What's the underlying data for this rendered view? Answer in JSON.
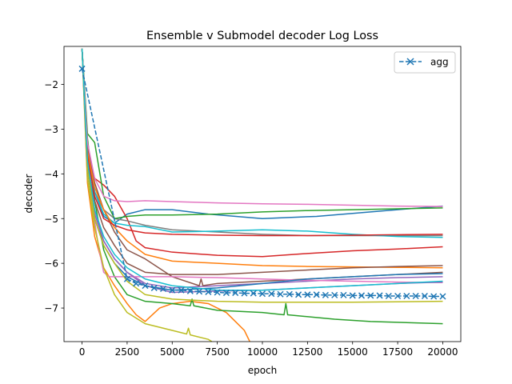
{
  "chart_data": {
    "type": "line",
    "title": "Ensemble v Submodel decoder Log Loss",
    "xlabel": "epoch",
    "ylabel": "decoder",
    "xlim": [
      -1000,
      21000
    ],
    "ylim": [
      -7.75,
      -1.15
    ],
    "xticks": [
      0,
      2500,
      5000,
      7500,
      10000,
      12500,
      15000,
      17500,
      20000
    ],
    "yticks": [
      -7,
      -6,
      -5,
      -4,
      -3,
      -2
    ],
    "ytick_labels": [
      "−7",
      "−6",
      "−5",
      "−4",
      "−3",
      "−2"
    ],
    "grid": false,
    "legend": {
      "position": "top-right",
      "entries": [
        "agg"
      ]
    },
    "agg": {
      "name": "agg",
      "color": "#1f77b4",
      "style": "dashed",
      "marker": "x",
      "x": [
        0,
        2500,
        3000,
        3500,
        4000,
        4500,
        5000,
        5500,
        6000,
        6500,
        7000,
        7500,
        8000,
        8500,
        9000,
        9500,
        10000,
        10500,
        11000,
        11500,
        12000,
        12500,
        13000,
        13500,
        14000,
        14500,
        15000,
        15500,
        16000,
        16500,
        17000,
        17500,
        18000,
        18500,
        19000,
        19500,
        20000
      ],
      "y": [
        -1.65,
        -6.35,
        -6.45,
        -6.5,
        -6.55,
        -6.57,
        -6.6,
        -6.6,
        -6.62,
        -6.63,
        -6.64,
        -6.65,
        -6.66,
        -6.66,
        -6.67,
        -6.67,
        -6.68,
        -6.68,
        -6.69,
        -6.69,
        -6.7,
        -6.7,
        -6.7,
        -6.71,
        -6.71,
        -6.71,
        -6.72,
        -6.72,
        -6.72,
        -6.72,
        -6.73,
        -6.73,
        -6.73,
        -6.73,
        -6.73,
        -6.74,
        -6.74
      ]
    },
    "series": [
      {
        "color": "#1f77b4",
        "x": [
          0,
          300,
          700,
          1200,
          1800,
          2500,
          3500,
          5000,
          7000,
          10000,
          13000,
          16000,
          20000
        ],
        "y": [
          -1.2,
          -3.3,
          -4.4,
          -4.95,
          -5.1,
          -4.9,
          -4.8,
          -4.8,
          -4.9,
          -5.0,
          -4.95,
          -4.85,
          -4.72
        ]
      },
      {
        "color": "#ff7f0e",
        "x": [
          0,
          300,
          700,
          1200,
          1800,
          2500,
          3000,
          3500,
          3900,
          4300,
          5000,
          6000,
          7000,
          8000,
          8500,
          9000,
          9300
        ],
        "y": [
          -1.2,
          -4.2,
          -5.4,
          -6.1,
          -6.5,
          -6.9,
          -7.15,
          -7.3,
          -7.15,
          -7.0,
          -6.9,
          -6.85,
          -6.9,
          -7.1,
          -7.3,
          -7.5,
          -7.75
        ]
      },
      {
        "color": "#2ca02c",
        "x": [
          0,
          300,
          700,
          1200,
          1800,
          2500,
          3500,
          5000,
          6000,
          6100,
          6200,
          7500,
          10000,
          11200,
          11300,
          11400,
          14000,
          16000,
          20000
        ],
        "y": [
          -1.2,
          -3.2,
          -4.6,
          -5.7,
          -6.3,
          -6.7,
          -6.85,
          -6.9,
          -6.95,
          -6.8,
          -6.95,
          -7.05,
          -7.1,
          -7.15,
          -6.9,
          -7.15,
          -7.25,
          -7.3,
          -7.35
        ]
      },
      {
        "color": "#d62728",
        "x": [
          0,
          300,
          700,
          1200,
          1800,
          2500,
          3000,
          3500,
          5000,
          7500,
          10000,
          12500,
          15000,
          17500,
          20000
        ],
        "y": [
          -1.2,
          -3.5,
          -4.1,
          -4.25,
          -4.5,
          -5.0,
          -5.5,
          -5.65,
          -5.75,
          -5.82,
          -5.85,
          -5.78,
          -5.72,
          -5.68,
          -5.63
        ]
      },
      {
        "color": "#9467bd",
        "x": [
          0,
          300,
          700,
          1200,
          1800,
          2500,
          3500,
          5000,
          7500,
          10000,
          12500,
          15000,
          17500,
          20000
        ],
        "y": [
          -1.2,
          -3.8,
          -4.8,
          -5.5,
          -5.9,
          -6.2,
          -6.45,
          -6.55,
          -6.5,
          -6.45,
          -6.4,
          -6.35,
          -6.32,
          -6.3
        ]
      },
      {
        "color": "#8c564b",
        "x": [
          0,
          300,
          700,
          1200,
          1800,
          2500,
          3500,
          5000,
          6500,
          6600,
          6700,
          7500,
          10000,
          12500,
          15000,
          17500,
          20000
        ],
        "y": [
          -1.2,
          -3.4,
          -4.2,
          -4.8,
          -5.3,
          -5.7,
          -5.9,
          -6.3,
          -6.5,
          -6.35,
          -6.5,
          -6.45,
          -6.4,
          -6.35,
          -6.3,
          -6.25,
          -6.2
        ]
      },
      {
        "color": "#e377c2",
        "x": [
          0,
          300,
          600,
          900,
          1200,
          1500,
          2000,
          3000,
          5000,
          7500,
          10000,
          12500,
          15000,
          17500,
          20000
        ],
        "y": [
          -1.2,
          -3.9,
          -4.8,
          -5.6,
          -6.2,
          -6.3,
          -6.3,
          -6.3,
          -6.3,
          -6.32,
          -6.35,
          -6.38,
          -6.4,
          -6.42,
          -6.43
        ]
      },
      {
        "color": "#7f7f7f",
        "x": [
          0,
          300,
          700,
          1200,
          1800,
          2500,
          3500,
          5000,
          7500,
          10000,
          12500,
          15000,
          17500,
          20000
        ],
        "y": [
          -1.2,
          -3.6,
          -4.4,
          -4.8,
          -5.0,
          -5.05,
          -5.15,
          -5.25,
          -5.3,
          -5.35,
          -5.38,
          -5.38,
          -5.38,
          -5.38
        ]
      },
      {
        "color": "#bcbd22",
        "x": [
          0,
          300,
          700,
          1200,
          1800,
          2500,
          3500,
          5000,
          5800,
          5900,
          6000,
          7000,
          7200
        ],
        "y": [
          -1.2,
          -4.1,
          -5.2,
          -6.1,
          -6.7,
          -7.1,
          -7.35,
          -7.5,
          -7.58,
          -7.45,
          -7.6,
          -7.7,
          -7.75
        ]
      },
      {
        "color": "#17becf",
        "x": [
          0,
          300,
          700,
          1200,
          1800,
          2500,
          3500,
          5000,
          7500,
          10000,
          12500,
          15000,
          17500,
          20000
        ],
        "y": [
          -1.2,
          -3.7,
          -4.4,
          -4.9,
          -5.1,
          -5.15,
          -5.18,
          -5.3,
          -5.28,
          -5.25,
          -5.28,
          -5.35,
          -5.4,
          -5.42
        ]
      },
      {
        "color": "#1f77b4",
        "x": [
          0,
          300,
          700,
          1200,
          1800,
          2500,
          3500,
          5000,
          7500,
          10000,
          12500,
          15000,
          17500,
          20000
        ],
        "y": [
          -1.2,
          -3.9,
          -5.0,
          -5.6,
          -6.0,
          -6.3,
          -6.5,
          -6.6,
          -6.55,
          -6.45,
          -6.35,
          -6.3,
          -6.25,
          -6.23
        ]
      },
      {
        "color": "#ff7f0e",
        "x": [
          0,
          300,
          700,
          1200,
          1800,
          2500,
          3500,
          5000,
          7500,
          10000,
          12500,
          15000,
          17500,
          20000
        ],
        "y": [
          -1.2,
          -3.5,
          -4.3,
          -4.8,
          -5.2,
          -5.5,
          -5.8,
          -5.95,
          -6.0,
          -6.05,
          -6.07,
          -6.08,
          -6.09,
          -6.1
        ]
      },
      {
        "color": "#2ca02c",
        "x": [
          0,
          300,
          700,
          1200,
          1800,
          2500,
          3500,
          5000,
          7500,
          10000,
          12500,
          15000,
          17500,
          20000
        ],
        "y": [
          -1.2,
          -3.1,
          -3.3,
          -4.5,
          -5.0,
          -4.95,
          -4.92,
          -4.92,
          -4.9,
          -4.85,
          -4.82,
          -4.8,
          -4.78,
          -4.76
        ]
      },
      {
        "color": "#d62728",
        "x": [
          0,
          300,
          700,
          1200,
          1800,
          2500,
          3500,
          5000,
          7500,
          10000,
          12500,
          15000,
          17500,
          20000
        ],
        "y": [
          -1.2,
          -3.6,
          -4.5,
          -5.0,
          -5.15,
          -5.25,
          -5.32,
          -5.35,
          -5.37,
          -5.38,
          -5.38,
          -5.37,
          -5.36,
          -5.35
        ]
      },
      {
        "color": "#9467bd",
        "x": [
          0,
          300,
          700,
          1200,
          1800,
          2500,
          3500,
          5000,
          7500,
          10000,
          12500,
          15000,
          17500,
          20000
        ],
        "y": [
          -1.2,
          -3.9,
          -4.9,
          -5.5,
          -5.9,
          -6.2,
          -6.5,
          -6.65,
          -6.62,
          -6.6,
          -6.55,
          -6.5,
          -6.45,
          -6.42
        ]
      },
      {
        "color": "#8c564b",
        "x": [
          0,
          300,
          700,
          1200,
          1800,
          2500,
          3500,
          5000,
          7500,
          10000,
          12500,
          15000,
          17500,
          20000
        ],
        "y": [
          -1.2,
          -3.8,
          -4.6,
          -5.2,
          -5.6,
          -6.0,
          -6.2,
          -6.25,
          -6.25,
          -6.2,
          -6.15,
          -6.1,
          -6.07,
          -6.05
        ]
      },
      {
        "color": "#e377c2",
        "x": [
          0,
          300,
          700,
          1200,
          1800,
          2500,
          3500,
          5000,
          7500,
          10000,
          12500,
          15000,
          17500,
          20000
        ],
        "y": [
          -1.2,
          -3.3,
          -4.1,
          -4.5,
          -4.6,
          -4.62,
          -4.6,
          -4.62,
          -4.65,
          -4.67,
          -4.68,
          -4.7,
          -4.72,
          -4.73
        ]
      },
      {
        "color": "#bcbd22",
        "x": [
          0,
          300,
          700,
          1200,
          1800,
          2500,
          3500,
          5000,
          7500,
          10000,
          12500,
          15000,
          17500,
          20000
        ],
        "y": [
          -1.2,
          -3.9,
          -5.0,
          -5.6,
          -6.0,
          -6.4,
          -6.7,
          -6.8,
          -6.85,
          -6.87,
          -6.87,
          -6.87,
          -6.86,
          -6.85
        ]
      },
      {
        "color": "#17becf",
        "x": [
          0,
          300,
          700,
          1200,
          1800,
          2500,
          3500,
          5000,
          7500,
          10000,
          12500,
          15000,
          17500,
          20000
        ],
        "y": [
          -1.2,
          -3.7,
          -4.8,
          -5.4,
          -5.8,
          -6.1,
          -6.35,
          -6.5,
          -6.6,
          -6.6,
          -6.55,
          -6.5,
          -6.45,
          -6.4
        ]
      }
    ]
  }
}
